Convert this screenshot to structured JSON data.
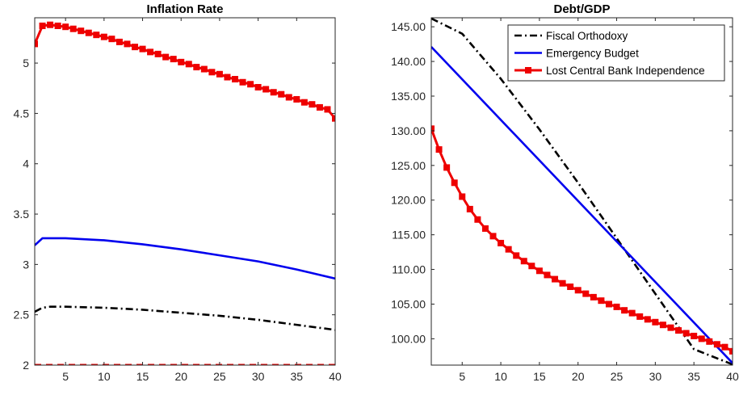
{
  "chart_data": [
    {
      "type": "line",
      "title": "Inflation Rate",
      "xlabel": "",
      "ylabel": "",
      "xlim": [
        1,
        40
      ],
      "ylim": [
        2,
        5.45
      ],
      "xticks": [
        5,
        10,
        15,
        20,
        25,
        30,
        35,
        40
      ],
      "xtick_labels": [
        "5",
        "10",
        "15",
        "20",
        "25",
        "30",
        "35",
        "40"
      ],
      "yticks": [
        2,
        2.5,
        3,
        3.5,
        4,
        4.5,
        5
      ],
      "ytick_labels": [
        "2",
        "2.5",
        "3",
        "3.5",
        "4",
        "4.5",
        "5"
      ],
      "grid": false,
      "series": [
        {
          "name": "Fiscal Orthodoxy",
          "color": "#000000",
          "style": "dashdot",
          "x": [
            1,
            2,
            3,
            5,
            10,
            15,
            20,
            25,
            30,
            35,
            40
          ],
          "values": [
            2.53,
            2.57,
            2.58,
            2.58,
            2.57,
            2.55,
            2.52,
            2.49,
            2.45,
            2.4,
            2.35
          ]
        },
        {
          "name": "Emergency Budget",
          "color": "#0000ee",
          "style": "solid",
          "x": [
            1,
            2,
            3,
            5,
            10,
            15,
            20,
            25,
            30,
            35,
            40
          ],
          "values": [
            3.19,
            3.26,
            3.26,
            3.26,
            3.24,
            3.2,
            3.15,
            3.09,
            3.03,
            2.95,
            2.86
          ]
        },
        {
          "name": "Lost Central Bank Independence",
          "color": "#ee0000",
          "style": "solid-square",
          "x": [
            1,
            2,
            3,
            4,
            5,
            6,
            7,
            8,
            9,
            10,
            11,
            12,
            13,
            14,
            15,
            16,
            17,
            18,
            19,
            20,
            21,
            22,
            23,
            24,
            25,
            26,
            27,
            28,
            29,
            30,
            31,
            32,
            33,
            34,
            35,
            36,
            37,
            38,
            39,
            40
          ],
          "values": [
            5.19,
            5.37,
            5.38,
            5.37,
            5.36,
            5.34,
            5.32,
            5.3,
            5.28,
            5.26,
            5.24,
            5.21,
            5.19,
            5.16,
            5.14,
            5.11,
            5.09,
            5.06,
            5.04,
            5.01,
            4.99,
            4.96,
            4.94,
            4.91,
            4.89,
            4.86,
            4.84,
            4.81,
            4.79,
            4.76,
            4.74,
            4.71,
            4.69,
            4.66,
            4.64,
            4.61,
            4.59,
            4.56,
            4.54,
            4.45
          ]
        },
        {
          "name": "",
          "color": "#ee0000",
          "style": "dashed",
          "x": [
            1,
            40
          ],
          "values": [
            2.0,
            2.0
          ]
        }
      ]
    },
    {
      "type": "line",
      "title": "Debt/GDP",
      "xlabel": "",
      "ylabel": "",
      "xlim": [
        1,
        40
      ],
      "ylim": [
        96.2,
        146.3
      ],
      "xticks": [
        5,
        10,
        15,
        20,
        25,
        30,
        35,
        40
      ],
      "xtick_labels": [
        "5",
        "10",
        "15",
        "20",
        "25",
        "30",
        "35",
        "40"
      ],
      "yticks": [
        100,
        105,
        110,
        115,
        120,
        125,
        130,
        135,
        140,
        145
      ],
      "ytick_labels": [
        "100.00",
        "105.00",
        "110.00",
        "115.00",
        "120.00",
        "125.00",
        "130.00",
        "135.00",
        "140.00",
        "145.00"
      ],
      "grid": false,
      "legend": "top-right",
      "series": [
        {
          "name": "Fiscal Orthodoxy",
          "color": "#000000",
          "style": "dashdot",
          "x": [
            1,
            5,
            10,
            15,
            20,
            25,
            30,
            35,
            40
          ],
          "values": [
            146.2,
            144.0,
            137.5,
            130.2,
            122.5,
            114.5,
            106.5,
            98.5,
            96.3
          ]
        },
        {
          "name": "Emergency Budget",
          "color": "#0000ee",
          "style": "solid",
          "x": [
            1,
            40
          ],
          "values": [
            142.1,
            96.5
          ]
        },
        {
          "name": "Lost Central Bank Independence",
          "color": "#ee0000",
          "style": "solid-square",
          "x": [
            1,
            2,
            3,
            4,
            5,
            6,
            7,
            8,
            9,
            10,
            11,
            12,
            13,
            14,
            15,
            16,
            17,
            18,
            19,
            20,
            21,
            22,
            23,
            24,
            25,
            26,
            27,
            28,
            29,
            30,
            31,
            32,
            33,
            34,
            35,
            36,
            37,
            38,
            39,
            40
          ],
          "values": [
            130.3,
            127.3,
            124.7,
            122.5,
            120.5,
            118.7,
            117.2,
            115.9,
            114.8,
            113.8,
            112.9,
            112.0,
            111.2,
            110.5,
            109.8,
            109.2,
            108.6,
            108.0,
            107.5,
            107.0,
            106.5,
            106.0,
            105.5,
            105.0,
            104.6,
            104.1,
            103.7,
            103.2,
            102.8,
            102.4,
            102.0,
            101.6,
            101.2,
            100.8,
            100.4,
            100.0,
            99.6,
            99.2,
            98.8,
            98.2
          ]
        }
      ]
    }
  ]
}
